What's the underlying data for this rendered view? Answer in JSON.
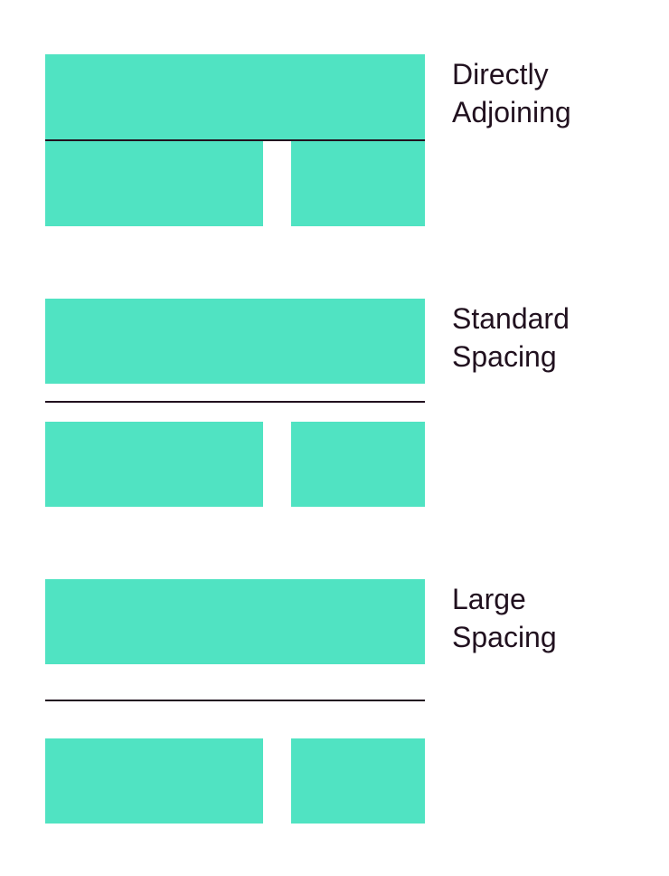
{
  "colors": {
    "block": "#50E3C2",
    "divider": "#21111f",
    "text": "#21111f"
  },
  "examples": [
    {
      "label_line1": "Directly",
      "label_line2": "Adjoining"
    },
    {
      "label_line1": "Standard",
      "label_line2": "Spacing"
    },
    {
      "label_line1": "Large",
      "label_line2": "Spacing"
    }
  ]
}
